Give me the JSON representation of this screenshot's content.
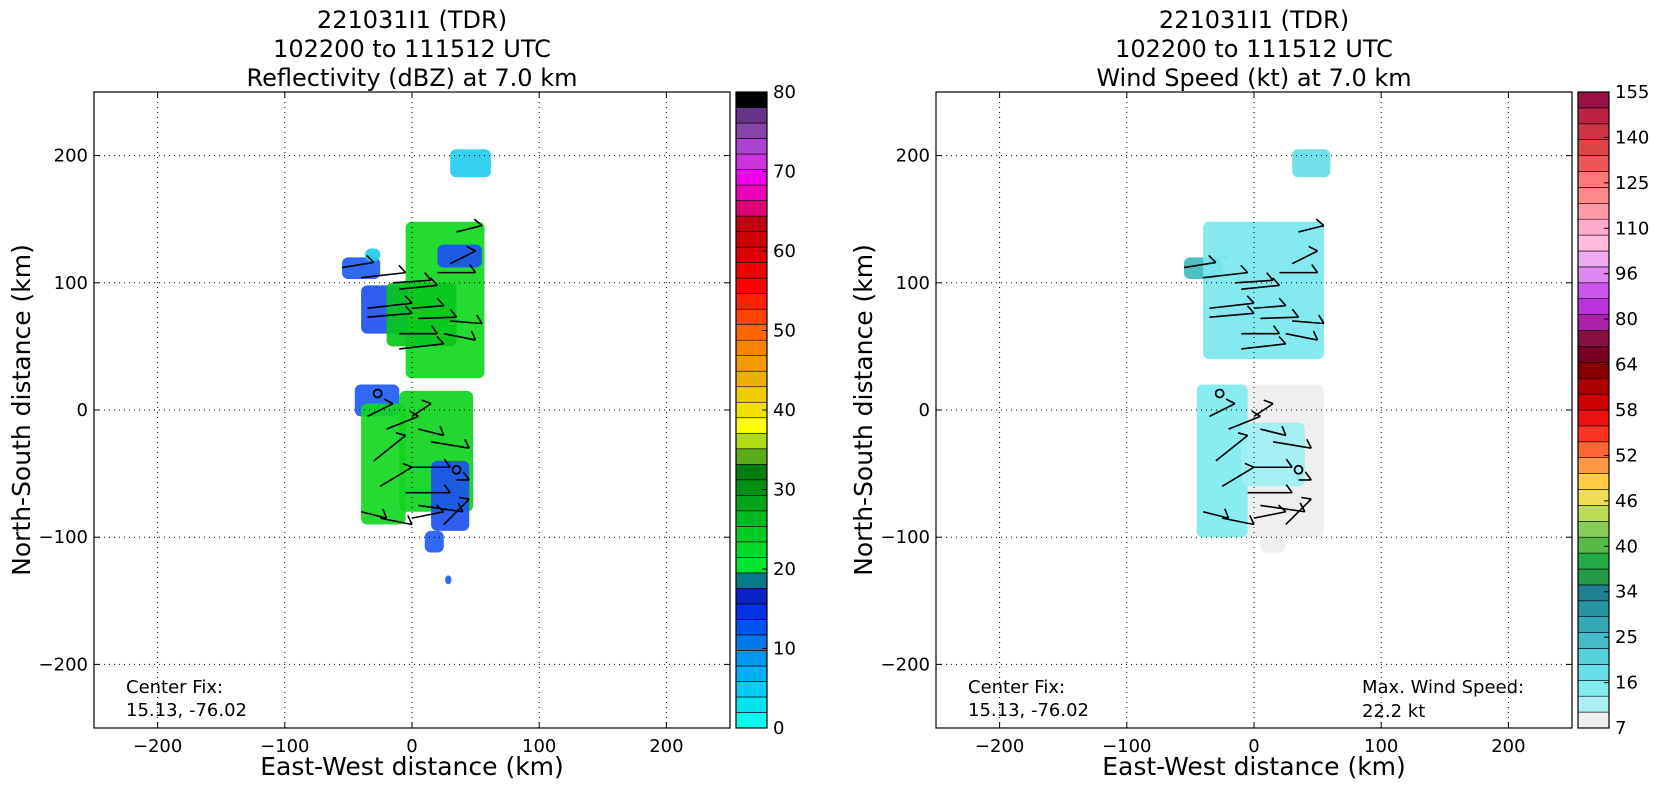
{
  "chart_data": [
    {
      "type": "heatmap",
      "title_lines": [
        "221031I1 (TDR)",
        "102200 to 111512 UTC",
        "Reflectivity (dBZ) at 7.0 km"
      ],
      "xlabel": "East-West distance (km)",
      "ylabel": "North-South distance (km)",
      "xlim": [
        -250,
        250
      ],
      "ylim": [
        -250,
        250
      ],
      "xticks": [
        -200,
        -100,
        0,
        100,
        200
      ],
      "yticks": [
        -200,
        -100,
        0,
        100,
        200
      ],
      "xtick_labels": [
        "−200",
        "−100",
        "0",
        "100",
        "200"
      ],
      "ytick_labels": [
        "−200",
        "−100",
        "0",
        "100",
        "200"
      ],
      "grid": true,
      "center_fix_label": "Center Fix:",
      "center_fix_value": "15.13, -76.02",
      "center_fix_point": [
        -27,
        13
      ],
      "colorbar": {
        "min": 0,
        "max": 80,
        "ticks": [
          "0",
          "10",
          "20",
          "30",
          "40",
          "50",
          "60",
          "70",
          "80"
        ],
        "colors": [
          "#00ffee",
          "#00e5f0",
          "#00ccf5",
          "#00b0f5",
          "#0095ef",
          "#0078ee",
          "#0055f0",
          "#0033e5",
          "#0a22c8",
          "#067a8a",
          "#00e630",
          "#00d82a",
          "#00cc24",
          "#00b81f",
          "#00a41a",
          "#009015",
          "#007e10",
          "#5aac18",
          "#b0dc10",
          "#ffff00",
          "#f2e000",
          "#eecc00",
          "#eab000",
          "#f29a00",
          "#f78400",
          "#ff6600",
          "#ff4400",
          "#ff2200",
          "#ff0000",
          "#ee0000",
          "#dd0000",
          "#cc0000",
          "#c00010",
          "#dd0077",
          "#ee00bb",
          "#ee00ee",
          "#cc33dd",
          "#aa44cc",
          "#8844aa",
          "#663388",
          "#000000"
        ]
      },
      "echo_blocks": [
        {
          "x": [
            -55,
            -25
          ],
          "y": [
            103,
            120
          ],
          "c": "#1d5cf5"
        },
        {
          "x": [
            -37,
            -25
          ],
          "y": [
            117,
            127
          ],
          "c": "#22ccee"
        },
        {
          "x": [
            -5,
            57
          ],
          "y": [
            148,
            25
          ],
          "c": "#10d820"
        },
        {
          "x": [
            -40,
            -3
          ],
          "y": [
            98,
            60
          ],
          "c": "#1d50f0"
        },
        {
          "x": [
            -20,
            35
          ],
          "y": [
            100,
            50
          ],
          "c": "#08c81c"
        },
        {
          "x": [
            20,
            55
          ],
          "y": [
            130,
            112
          ],
          "c": "#1d50f0"
        },
        {
          "x": [
            30,
            62
          ],
          "y": [
            205,
            183
          ],
          "c": "#22ccee"
        },
        {
          "x": [
            -45,
            -10
          ],
          "y": [
            20,
            -5
          ],
          "c": "#1d5cf5"
        },
        {
          "x": [
            -40,
            -5
          ],
          "y": [
            5,
            -90
          ],
          "c": "#12d820"
        },
        {
          "x": [
            -10,
            48
          ],
          "y": [
            15,
            -80
          ],
          "c": "#10d420"
        },
        {
          "x": [
            15,
            45
          ],
          "y": [
            -40,
            -95
          ],
          "c": "#1d50f0"
        },
        {
          "x": [
            10,
            25
          ],
          "y": [
            -95,
            -112
          ],
          "c": "#1d5cf5"
        },
        {
          "x": [
            26,
            31
          ],
          "y": [
            -130,
            -137
          ],
          "c": "#1d5cf5"
        }
      ]
    },
    {
      "type": "heatmap",
      "title_lines": [
        "221031I1 (TDR)",
        "102200 to 111512 UTC",
        "Wind Speed (kt) at 7.0 km"
      ],
      "xlabel": "East-West distance (km)",
      "ylabel": "North-South distance (km)",
      "xlim": [
        -250,
        250
      ],
      "ylim": [
        -250,
        250
      ],
      "xticks": [
        -200,
        -100,
        0,
        100,
        200
      ],
      "yticks": [
        -200,
        -100,
        0,
        100,
        200
      ],
      "xtick_labels": [
        "−200",
        "−100",
        "0",
        "100",
        "200"
      ],
      "ytick_labels": [
        "−200",
        "−100",
        "0",
        "100",
        "200"
      ],
      "grid": true,
      "center_fix_label": "Center Fix:",
      "center_fix_value": "15.13, -76.02",
      "center_fix_point": [
        -27,
        13
      ],
      "max_wind_label": "Max. Wind Speed:",
      "max_wind_value": "22.2 kt",
      "colorbar": {
        "min": 7,
        "max": 160,
        "ticks": [
          "7",
          "16",
          "25",
          "34",
          "40",
          "46",
          "52",
          "58",
          "64",
          "80",
          "96",
          "110",
          "125",
          "140",
          "155"
        ],
        "colors": [
          "#eeeeee",
          "#aaf0f0",
          "#80ecec",
          "#66e0e6",
          "#55d0d8",
          "#44bcc8",
          "#34a8b4",
          "#2894a0",
          "#1e8090",
          "#229944",
          "#22aa44",
          "#55bb44",
          "#88cc55",
          "#bbdd55",
          "#eedd55",
          "#ffcc44",
          "#ff9944",
          "#ff6633",
          "#ff3322",
          "#ee1111",
          "#cc0000",
          "#aa0000",
          "#880000",
          "#770022",
          "#881144",
          "#aa22aa",
          "#bb33dd",
          "#cc55ee",
          "#dd88ee",
          "#eeaaee",
          "#ffbbdd",
          "#ffaacc",
          "#ff99aa",
          "#ff8888",
          "#ff7777",
          "#ee5555",
          "#dd4444",
          "#cc3344",
          "#bb2244",
          "#991144"
        ]
      },
      "echo_blocks": [
        {
          "x": [
            30,
            60
          ],
          "y": [
            205,
            183
          ],
          "c": "#66dde6"
        },
        {
          "x": [
            -55,
            -25
          ],
          "y": [
            103,
            120
          ],
          "c": "#3fb8c2"
        },
        {
          "x": [
            -25,
            -20
          ],
          "y": [
            118,
            123
          ],
          "c": "#66dde6"
        },
        {
          "x": [
            -40,
            55
          ],
          "y": [
            148,
            40
          ],
          "c": "#7ae8ee"
        },
        {
          "x": [
            -45,
            55
          ],
          "y": [
            20,
            -100
          ],
          "c": "#eeeeee"
        },
        {
          "x": [
            -45,
            -5
          ],
          "y": [
            20,
            -100
          ],
          "c": "#80ecee"
        },
        {
          "x": [
            -10,
            40
          ],
          "y": [
            -10,
            -60
          ],
          "c": "#9ef0f2"
        },
        {
          "x": [
            5,
            25
          ],
          "y": [
            -100,
            -112
          ],
          "c": "#eeeeee"
        }
      ]
    }
  ]
}
